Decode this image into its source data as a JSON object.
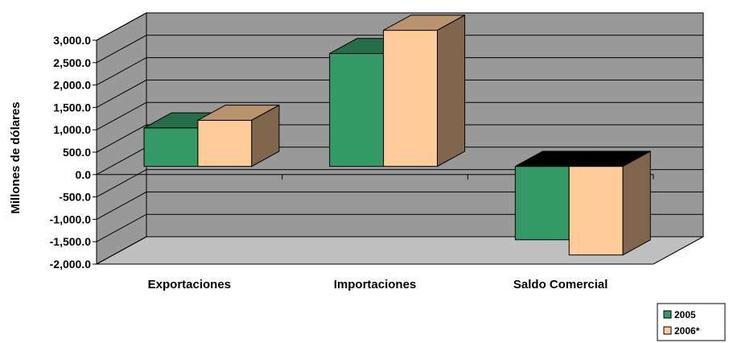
{
  "chart_data": {
    "type": "bar",
    "style": "3d-clustered-column",
    "categories": [
      "Exportaciones",
      "Importaciones",
      "Saldo Comercial"
    ],
    "series": [
      {
        "name": "2005",
        "values": [
          860,
          2520,
          -1640
        ]
      },
      {
        "name": "2006*",
        "values": [
          1030,
          3040,
          -1980
        ]
      }
    ],
    "title": "",
    "xlabel": "",
    "ylabel": "Millones de dólares",
    "ylim": [
      -2000,
      3000
    ],
    "yticks": [
      3000,
      2500,
      2000,
      1500,
      1000,
      500,
      0,
      -500,
      -1000,
      -1500,
      -2000
    ],
    "ytick_labels": [
      "3,000.0",
      "2,500.0",
      "2,000.0",
      "1,500.0",
      "1,000.0",
      "500.0",
      "0.0",
      "-500.0",
      "-1,000.0",
      "-1,500.0",
      "-2,000.0"
    ],
    "grid": true,
    "legend_position": "bottom-right",
    "colors": {
      "2005": "#339966",
      "2006*": "#ffcc99",
      "wall": "#999999",
      "floor": "#c0c0c0"
    }
  }
}
